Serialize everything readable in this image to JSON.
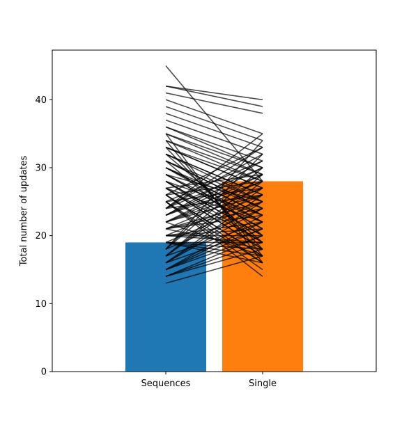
{
  "chart_data": {
    "type": "bar",
    "title": "",
    "xlabel": "",
    "ylabel": "Total number of updates",
    "categories": [
      "Sequences",
      "Single"
    ],
    "values": [
      19,
      28
    ],
    "colors": [
      "#1f77b4",
      "#ff7f0e"
    ],
    "ylim": [
      0,
      47.3
    ],
    "yticks": [
      0,
      10,
      20,
      30,
      40
    ],
    "grid": false,
    "legend": "none",
    "paired_lines": {
      "color": "#000000",
      "opacity": 0.7,
      "pairs": [
        [
          45,
          28
        ],
        [
          42,
          40
        ],
        [
          42,
          39
        ],
        [
          41,
          38
        ],
        [
          40,
          35
        ],
        [
          39,
          34
        ],
        [
          38,
          33
        ],
        [
          37,
          32
        ],
        [
          36,
          31
        ],
        [
          36,
          30
        ],
        [
          35,
          30
        ],
        [
          35,
          29
        ],
        [
          34,
          29
        ],
        [
          34,
          28
        ],
        [
          33,
          28
        ],
        [
          33,
          27
        ],
        [
          33,
          27
        ],
        [
          32,
          26
        ],
        [
          32,
          26
        ],
        [
          32,
          25
        ],
        [
          31,
          25
        ],
        [
          31,
          24
        ],
        [
          31,
          24
        ],
        [
          30,
          23
        ],
        [
          30,
          23
        ],
        [
          30,
          22
        ],
        [
          29,
          22
        ],
        [
          29,
          21
        ],
        [
          29,
          21
        ],
        [
          28,
          20
        ],
        [
          28,
          20
        ],
        [
          28,
          19
        ],
        [
          27,
          19
        ],
        [
          27,
          18
        ],
        [
          27,
          18
        ],
        [
          26,
          17
        ],
        [
          26,
          17
        ],
        [
          26,
          16
        ],
        [
          25,
          16
        ],
        [
          25,
          15
        ],
        [
          25,
          14
        ],
        [
          24,
          35
        ],
        [
          24,
          33
        ],
        [
          24,
          32
        ],
        [
          23,
          31
        ],
        [
          23,
          30
        ],
        [
          23,
          29
        ],
        [
          22,
          28
        ],
        [
          22,
          27
        ],
        [
          22,
          26
        ],
        [
          21,
          25
        ],
        [
          21,
          24
        ],
        [
          21,
          23
        ],
        [
          20,
          22
        ],
        [
          20,
          21
        ],
        [
          20,
          20
        ],
        [
          19,
          19
        ],
        [
          19,
          18
        ],
        [
          19,
          17
        ],
        [
          18,
          34
        ],
        [
          18,
          32
        ],
        [
          18,
          30
        ],
        [
          17,
          29
        ],
        [
          17,
          28
        ],
        [
          17,
          27
        ],
        [
          16,
          26
        ],
        [
          16,
          25
        ],
        [
          16,
          24
        ],
        [
          15,
          23
        ],
        [
          15,
          22
        ],
        [
          15,
          21
        ],
        [
          14,
          20
        ],
        [
          14,
          19
        ],
        [
          14,
          18
        ],
        [
          13,
          17
        ],
        [
          26,
          33
        ],
        [
          25,
          31
        ],
        [
          24,
          30
        ],
        [
          23,
          28
        ],
        [
          22,
          29
        ],
        [
          21,
          27
        ],
        [
          20,
          26
        ],
        [
          19,
          25
        ],
        [
          18,
          24
        ],
        [
          17,
          22
        ],
        [
          16,
          21
        ],
        [
          15,
          20
        ],
        [
          30,
          24
        ],
        [
          29,
          25
        ],
        [
          28,
          23
        ],
        [
          27,
          22
        ],
        [
          32,
          20
        ],
        [
          31,
          19
        ],
        [
          33,
          18
        ],
        [
          34,
          17
        ],
        [
          35,
          16
        ],
        [
          22,
          17
        ],
        [
          21,
          18
        ],
        [
          20,
          19
        ],
        [
          19,
          16
        ],
        [
          24,
          26
        ],
        [
          25,
          27
        ],
        [
          26,
          28
        ],
        [
          27,
          29
        ]
      ]
    }
  }
}
